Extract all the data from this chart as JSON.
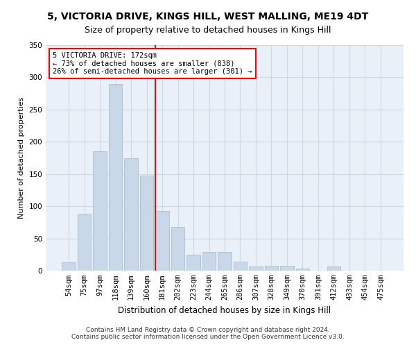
{
  "title1": "5, VICTORIA DRIVE, KINGS HILL, WEST MALLING, ME19 4DT",
  "title2": "Size of property relative to detached houses in Kings Hill",
  "xlabel": "Distribution of detached houses by size in Kings Hill",
  "ylabel": "Number of detached properties",
  "categories": [
    "54sqm",
    "75sqm",
    "97sqm",
    "118sqm",
    "139sqm",
    "160sqm",
    "181sqm",
    "202sqm",
    "223sqm",
    "244sqm",
    "265sqm",
    "286sqm",
    "307sqm",
    "328sqm",
    "349sqm",
    "370sqm",
    "391sqm",
    "412sqm",
    "433sqm",
    "454sqm",
    "475sqm"
  ],
  "values": [
    13,
    88,
    185,
    290,
    175,
    148,
    93,
    68,
    25,
    29,
    29,
    14,
    6,
    8,
    8,
    3,
    0,
    6,
    0,
    0,
    0
  ],
  "bar_color": "#c8d8e8",
  "bar_edge_color": "#a0b8cc",
  "grid_color": "#d0d8e8",
  "bg_color": "#eaf0f8",
  "annotation_line_color": "red",
  "annotation_text_line1": "5 VICTORIA DRIVE: 172sqm",
  "annotation_text_line2": "← 73% of detached houses are smaller (838)",
  "annotation_text_line3": "26% of semi-detached houses are larger (301) →",
  "footer": "Contains HM Land Registry data © Crown copyright and database right 2024.\nContains public sector information licensed under the Open Government Licence v3.0.",
  "ylim": [
    0,
    350
  ],
  "yticks": [
    0,
    50,
    100,
    150,
    200,
    250,
    300,
    350
  ],
  "title1_fontsize": 10,
  "title2_fontsize": 9,
  "ylabel_fontsize": 8,
  "xlabel_fontsize": 8.5,
  "tick_fontsize": 7.5,
  "footer_fontsize": 6.5,
  "annot_fontsize": 7.5
}
